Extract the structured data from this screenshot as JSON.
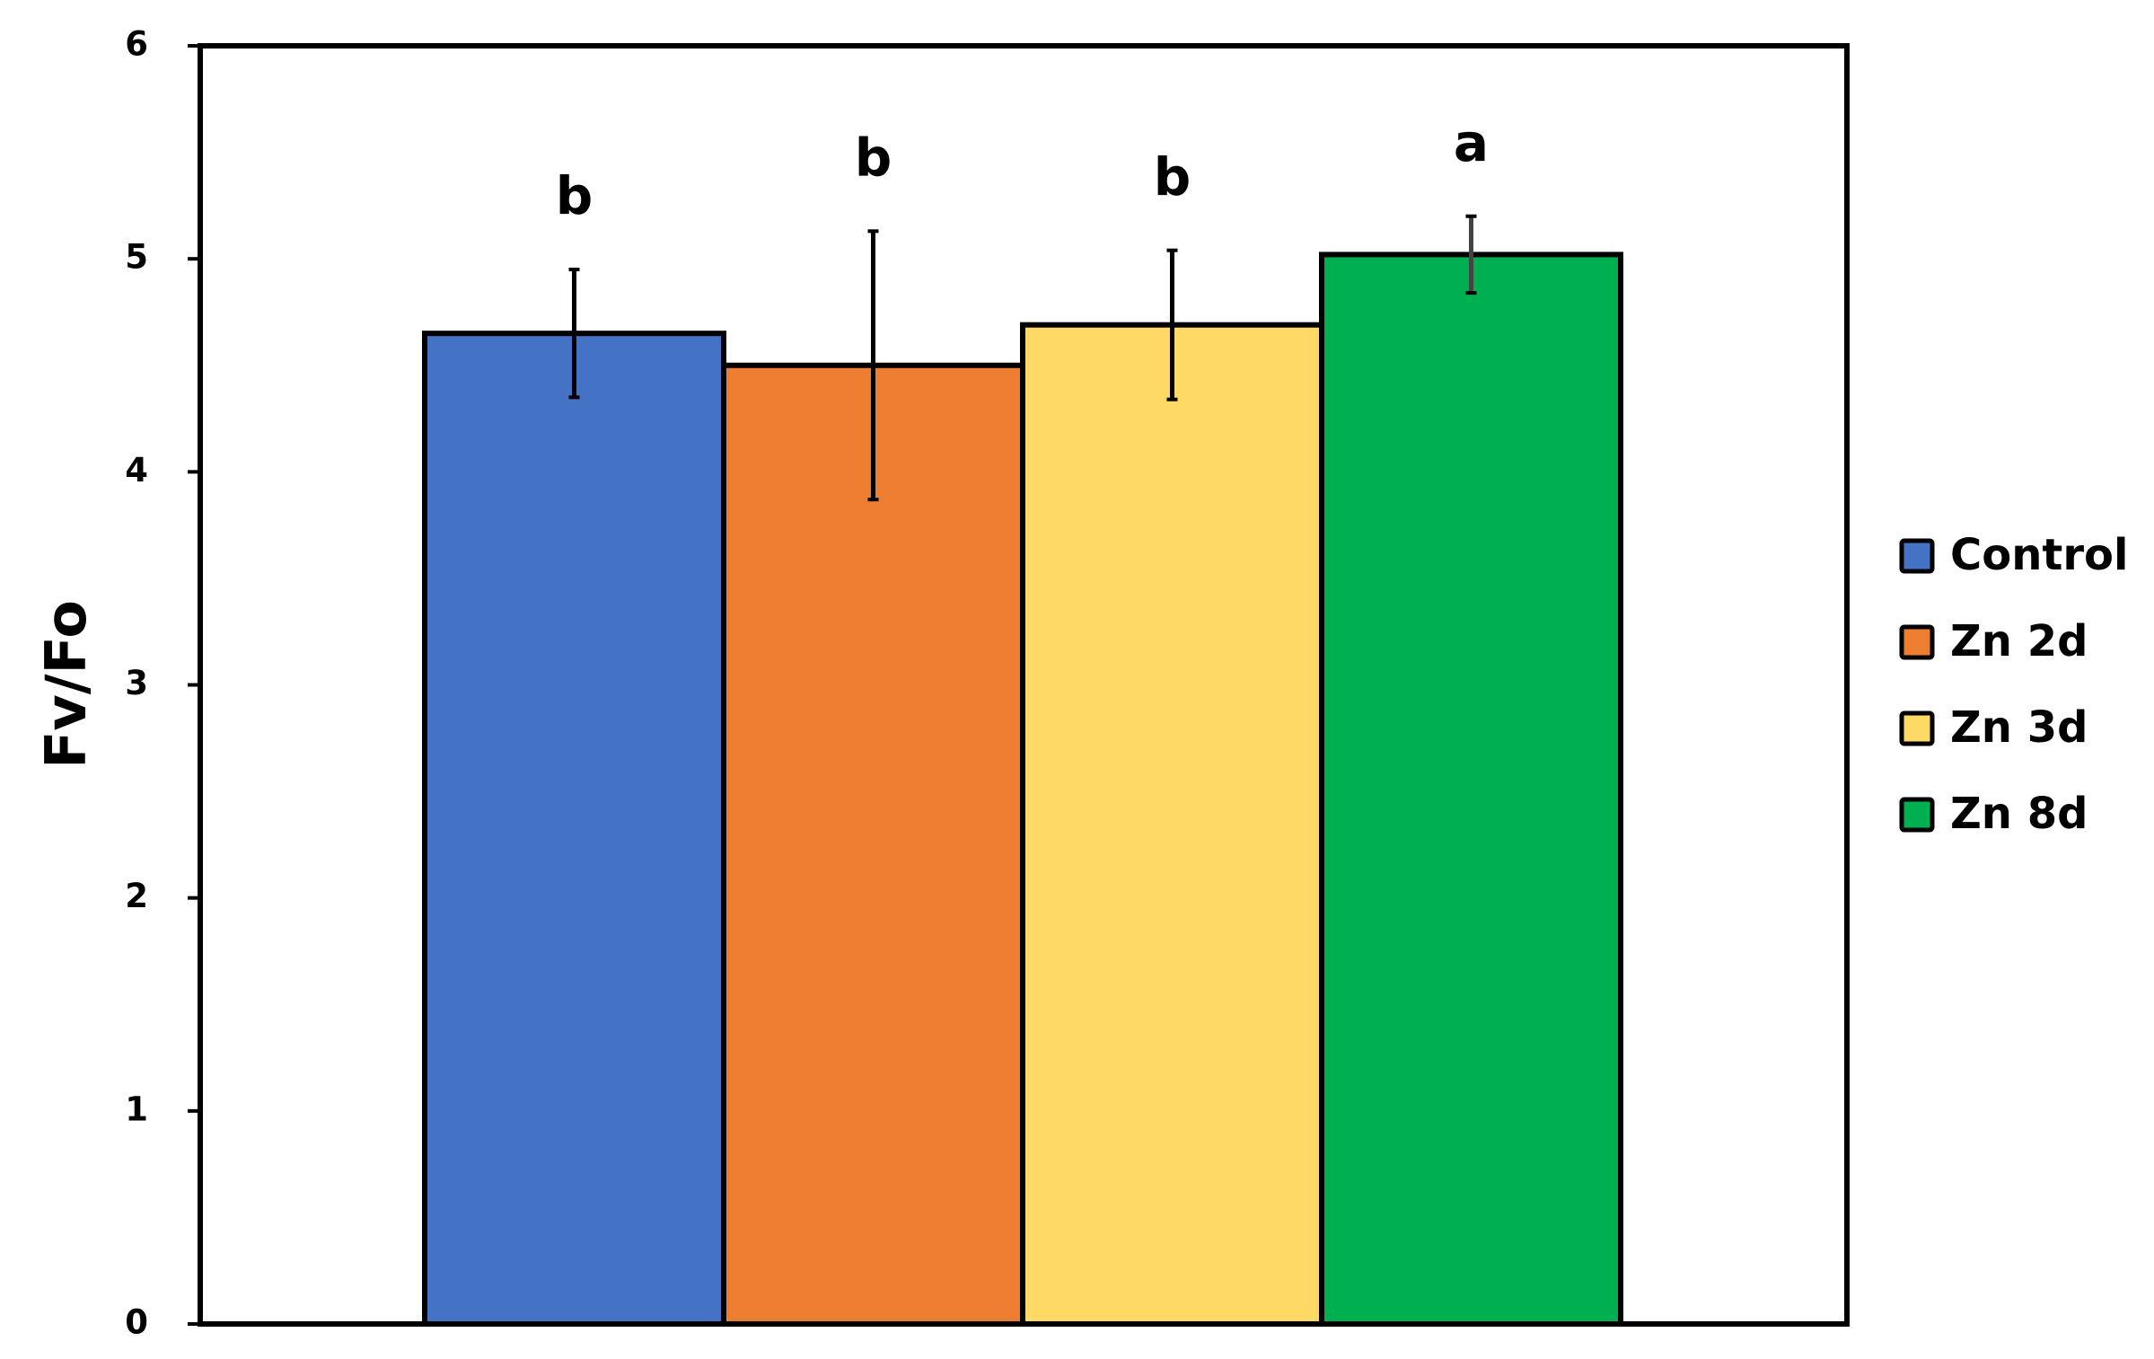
{
  "chart_data": {
    "type": "bar",
    "y_label": "Fv/Fo",
    "ylim": [
      0,
      6
    ],
    "yticks": [
      0,
      1,
      2,
      3,
      4,
      5,
      6
    ],
    "series": [
      {
        "name": "Control",
        "color": "#4472c4",
        "values": [
          4.65
        ],
        "errors": [
          0.3
        ],
        "letters": [
          "b"
        ]
      },
      {
        "name": "Zn 2d",
        "color": "#ed7d31",
        "values": [
          4.5
        ],
        "errors": [
          0.63
        ],
        "letters": [
          "b"
        ]
      },
      {
        "name": "Zn 3d",
        "color": "#ffd966",
        "values": [
          4.69
        ],
        "errors": [
          0.35
        ],
        "letters": [
          "b"
        ]
      },
      {
        "name": "Zn 8d",
        "color": "#00b050",
        "values": [
          5.02
        ],
        "errors": [
          0.18
        ],
        "letters": [
          "a"
        ]
      }
    ]
  }
}
